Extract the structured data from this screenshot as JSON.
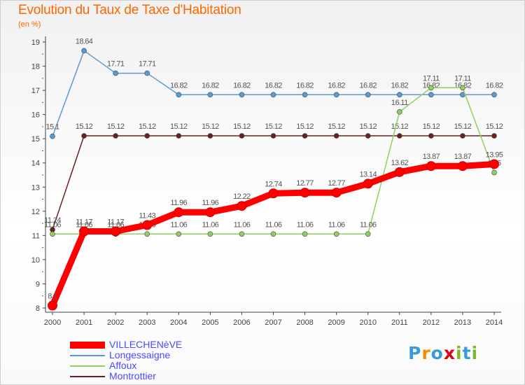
{
  "header": {
    "title": "Evolution du Taux de Taxe d'Habitation",
    "subtitle": "(en %)"
  },
  "logo": {
    "text": "Proxiti",
    "letter_colors": [
      "#3a9bd6",
      "#f28c00",
      "#3a9bd6",
      "#e0001b",
      "#7bb928",
      "#3a9bd6",
      "#7bb928"
    ]
  },
  "chart_data": {
    "type": "line",
    "title": "Evolution du Taux de Taxe d'Habitation",
    "subtitle": "(en %)",
    "x": [
      "2000",
      "2001",
      "2002",
      "2003",
      "2004",
      "2005",
      "2006",
      "2007",
      "2008",
      "2009",
      "2010",
      "2011",
      "2012",
      "2013",
      "2014"
    ],
    "yticks": [
      "8",
      "9",
      "10",
      "11",
      "12",
      "13",
      "14",
      "15",
      "16",
      "17",
      "18",
      "19"
    ],
    "ylim": [
      8,
      19
    ],
    "grid": false,
    "legend_position": "bottom-left",
    "series": [
      {
        "name": "Montrottier",
        "color": "#6b1f1f",
        "values": [
          11.24,
          15.12,
          15.12,
          15.12,
          15.12,
          15.12,
          15.12,
          15.12,
          15.12,
          15.12,
          15.12,
          15.12,
          15.12,
          15.12,
          15.12
        ],
        "labels": [
          "11.24",
          "15.12",
          "15.12",
          "15.12",
          "15.12",
          "15.12",
          "15.12",
          "15.12",
          "15.12",
          "15.12",
          "15.12",
          "15.12",
          "15.12",
          "15.12",
          "15.12"
        ]
      },
      {
        "name": "Longessaigne",
        "color": "#5b9bd5",
        "values": [
          15.1,
          18.64,
          17.71,
          17.71,
          16.82,
          16.82,
          16.82,
          16.82,
          16.82,
          16.82,
          16.82,
          16.82,
          16.82,
          16.82,
          16.82
        ],
        "labels": [
          "15.1",
          "18.64",
          "17.71",
          "17.71",
          "16.82",
          "16.82",
          "16.82",
          "16.82",
          "16.82",
          "16.82",
          "16.82",
          "16.82",
          "16.82",
          "16.82",
          "16.82"
        ]
      },
      {
        "name": "Affoux",
        "color": "#90d060",
        "values": [
          11.06,
          11.06,
          11.06,
          11.06,
          11.06,
          11.06,
          11.06,
          11.06,
          11.06,
          11.06,
          11.06,
          16.11,
          17.11,
          17.11,
          13.6
        ],
        "labels": [
          "11.06",
          "11.06",
          "11.06",
          "11.06",
          "11.06",
          "11.06",
          "11.06",
          "11.06",
          "11.06",
          "11.06",
          "11.06",
          "16.11",
          "17.11",
          "17.11",
          "13.6"
        ]
      },
      {
        "name": "VILLECHENèVE",
        "color": "#ff0000",
        "values": [
          8.1,
          11.17,
          11.17,
          11.43,
          11.96,
          11.96,
          12.22,
          12.74,
          12.77,
          12.77,
          13.14,
          13.62,
          13.87,
          13.87,
          13.95
        ],
        "labels": [
          "8.1",
          "11.17",
          "11.17",
          "11.43",
          "11.96",
          "11.96",
          "12.22",
          "12.74",
          "12.77",
          "12.77",
          "13.14",
          "13.62",
          "13.87",
          "13.87",
          "13.95"
        ]
      }
    ]
  }
}
